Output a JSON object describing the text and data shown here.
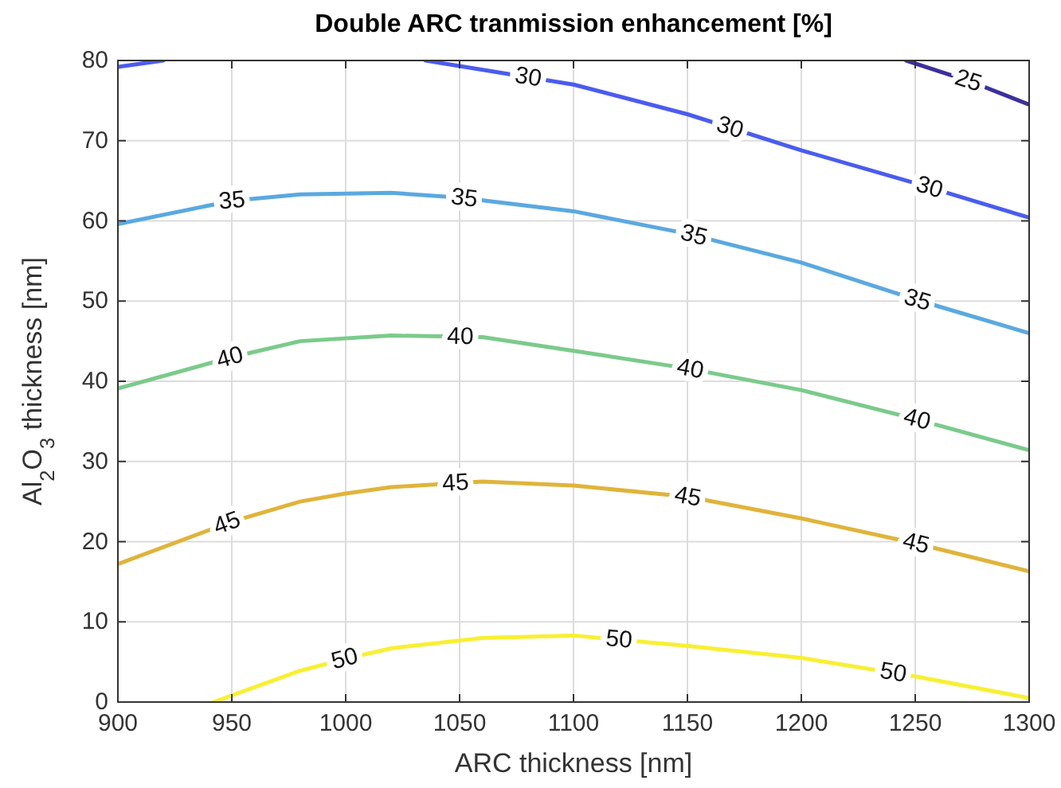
{
  "chart_data": {
    "type": "line",
    "title": "Double ARC tranmission enhancement [%]",
    "xlabel": "ARC thickness [nm]",
    "ylabel": "Al$_{2}$O$_{3}$ thickness [nm]",
    "xlim": [
      900,
      1300
    ],
    "ylim": [
      0,
      80
    ],
    "xticks": [
      900,
      950,
      1000,
      1050,
      1100,
      1150,
      1200,
      1250,
      1300
    ],
    "yticks": [
      0,
      10,
      20,
      30,
      40,
      50,
      60,
      70,
      80
    ],
    "grid": true,
    "line_style": "solid",
    "series": [
      {
        "name": "25",
        "color": "#3b2fa0",
        "x": [
          1246,
          1275,
          1300
        ],
        "values": [
          80,
          77.3,
          74.5
        ]
      },
      {
        "name": "30",
        "color": "#4a5cf0",
        "x": [
          900,
          920,
          980,
          1035,
          1050,
          1100,
          1150,
          1200,
          1250,
          1300
        ],
        "values": [
          79.2,
          80,
          null,
          80,
          79.3,
          77,
          73.3,
          68.8,
          64.7,
          60.4
        ]
      },
      {
        "name": "35",
        "color": "#5aa9e0",
        "x": [
          900,
          950,
          980,
          1020,
          1050,
          1100,
          1150,
          1200,
          1250,
          1300
        ],
        "values": [
          59.6,
          62.5,
          63.3,
          63.5,
          62.9,
          61.2,
          58.4,
          54.8,
          50.2,
          46
        ]
      },
      {
        "name": "40",
        "color": "#7acb8a",
        "x": [
          900,
          950,
          980,
          1020,
          1060,
          1100,
          1150,
          1200,
          1250,
          1300
        ],
        "values": [
          39.1,
          43,
          45,
          45.7,
          45.5,
          43.8,
          41.6,
          38.9,
          35.3,
          31.4
        ]
      },
      {
        "name": "45",
        "color": "#e0b43a",
        "x": [
          900,
          950,
          980,
          1000,
          1020,
          1060,
          1100,
          1150,
          1200,
          1250,
          1300
        ],
        "values": [
          17.2,
          22.5,
          25,
          26,
          26.8,
          27.5,
          27,
          25.6,
          22.9,
          19.8,
          16.3
        ]
      },
      {
        "name": "50",
        "color": "#f7f032",
        "x": [
          942,
          980,
          1000,
          1020,
          1060,
          1100,
          1150,
          1200,
          1250,
          1300
        ],
        "values": [
          0,
          3.9,
          5.4,
          6.7,
          8,
          8.3,
          7,
          5.5,
          3.2,
          0.5
        ]
      }
    ]
  }
}
